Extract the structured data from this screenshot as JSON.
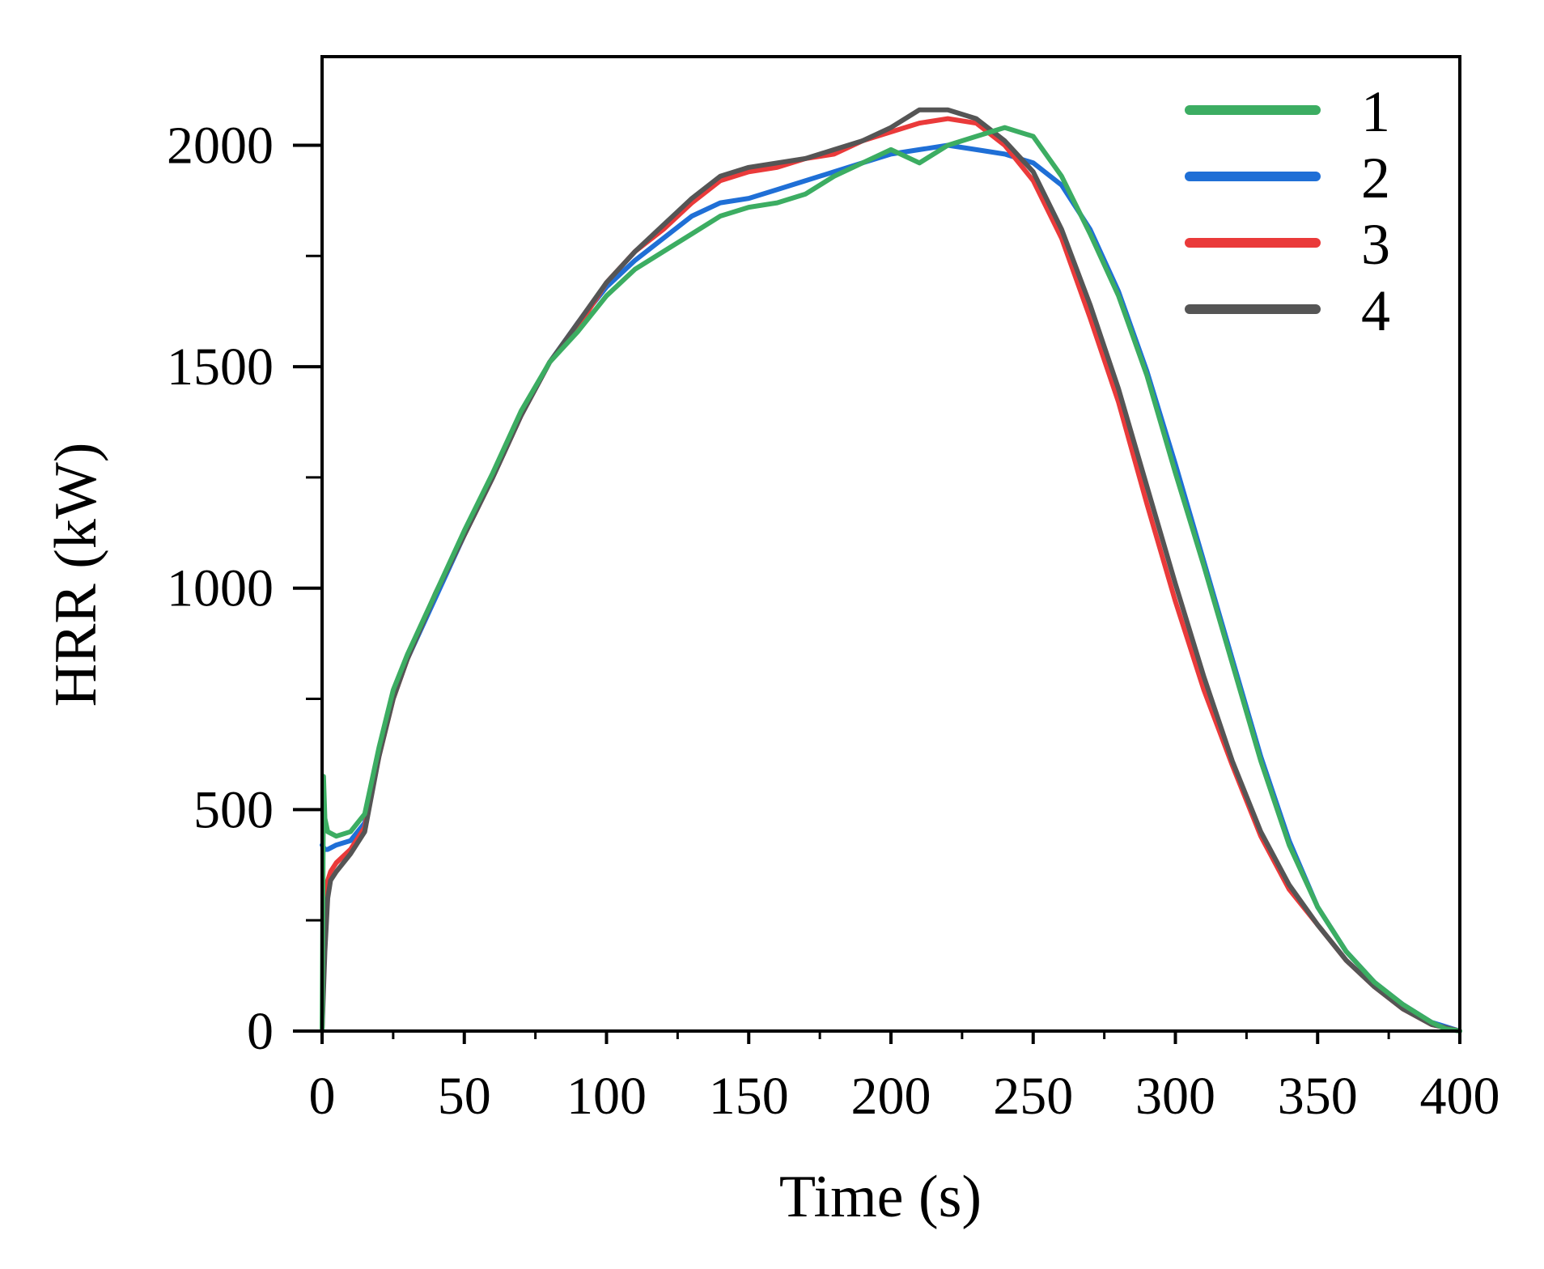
{
  "chart_data": {
    "type": "line",
    "title": "",
    "xlabel": "Time (s)",
    "ylabel": "HRR (kW)",
    "xlim": [
      0,
      400
    ],
    "ylim": [
      0,
      2200
    ],
    "x_ticks": [
      0,
      50,
      100,
      150,
      200,
      250,
      300,
      350,
      400
    ],
    "x_tick_labels": [
      "0",
      "50",
      "100",
      "150",
      "200",
      "250",
      "300",
      "350",
      "400"
    ],
    "y_ticks": [
      0,
      500,
      1000,
      1500,
      2000
    ],
    "y_tick_labels": [
      "0",
      "500",
      "1000",
      "1500",
      "2000"
    ],
    "grid": false,
    "legend_position": "top-right",
    "series": [
      {
        "name": "1",
        "color": "#3cad62",
        "x": [
          0,
          0.5,
          1,
          2,
          5,
          10,
          15,
          20,
          25,
          30,
          40,
          50,
          60,
          70,
          80,
          90,
          100,
          110,
          120,
          130,
          140,
          150,
          160,
          170,
          180,
          190,
          200,
          210,
          220,
          230,
          240,
          250,
          260,
          270,
          280,
          290,
          300,
          310,
          320,
          330,
          340,
          350,
          360,
          370,
          380,
          390,
          395,
          400
        ],
        "y": [
          0,
          575,
          480,
          450,
          440,
          450,
          490,
          640,
          770,
          850,
          990,
          1130,
          1260,
          1400,
          1510,
          1580,
          1660,
          1720,
          1760,
          1800,
          1840,
          1860,
          1870,
          1890,
          1930,
          1960,
          1990,
          1960,
          2000,
          2020,
          2040,
          2020,
          1930,
          1800,
          1660,
          1480,
          1260,
          1050,
          830,
          610,
          420,
          280,
          180,
          110,
          60,
          20,
          5,
          0
        ]
      },
      {
        "name": "2",
        "color": "#1f6fd6",
        "x": [
          0,
          1,
          2,
          5,
          10,
          15,
          20,
          25,
          30,
          40,
          50,
          60,
          70,
          80,
          90,
          100,
          110,
          120,
          130,
          140,
          150,
          160,
          170,
          180,
          190,
          200,
          210,
          220,
          230,
          240,
          250,
          260,
          270,
          280,
          290,
          300,
          310,
          320,
          330,
          340,
          350,
          360,
          370,
          380,
          390,
          400
        ],
        "y": [
          420,
          410,
          410,
          420,
          430,
          470,
          620,
          760,
          840,
          980,
          1120,
          1250,
          1390,
          1510,
          1600,
          1680,
          1740,
          1790,
          1840,
          1870,
          1880,
          1900,
          1920,
          1940,
          1960,
          1980,
          1990,
          2000,
          1990,
          1980,
          1960,
          1910,
          1810,
          1670,
          1490,
          1280,
          1060,
          840,
          620,
          430,
          280,
          180,
          110,
          60,
          20,
          0
        ]
      },
      {
        "name": "3",
        "color": "#ea3a3a",
        "x": [
          0,
          1,
          2,
          3,
          5,
          10,
          15,
          20,
          25,
          30,
          40,
          50,
          60,
          70,
          80,
          90,
          100,
          110,
          120,
          130,
          140,
          150,
          160,
          170,
          180,
          190,
          200,
          210,
          220,
          230,
          240,
          250,
          260,
          270,
          280,
          290,
          300,
          310,
          320,
          330,
          340,
          350,
          360,
          370,
          380,
          390,
          400
        ],
        "y": [
          0,
          250,
          340,
          360,
          380,
          410,
          460,
          620,
          750,
          840,
          990,
          1120,
          1250,
          1390,
          1510,
          1590,
          1690,
          1760,
          1810,
          1870,
          1920,
          1940,
          1950,
          1970,
          1980,
          2010,
          2030,
          2050,
          2060,
          2050,
          2000,
          1920,
          1790,
          1610,
          1420,
          1190,
          970,
          770,
          600,
          440,
          320,
          240,
          160,
          100,
          50,
          15,
          0
        ]
      },
      {
        "name": "4",
        "color": "#555555",
        "x": [
          0,
          1,
          2,
          3,
          5,
          10,
          15,
          20,
          25,
          30,
          40,
          50,
          60,
          70,
          80,
          90,
          100,
          110,
          120,
          130,
          140,
          150,
          160,
          170,
          180,
          190,
          200,
          210,
          220,
          230,
          240,
          250,
          260,
          270,
          280,
          290,
          300,
          310,
          320,
          330,
          340,
          350,
          360,
          370,
          380,
          390,
          400
        ],
        "y": [
          0,
          180,
          300,
          340,
          360,
          400,
          450,
          620,
          750,
          840,
          990,
          1120,
          1250,
          1390,
          1510,
          1600,
          1690,
          1760,
          1820,
          1880,
          1930,
          1950,
          1960,
          1970,
          1990,
          2010,
          2040,
          2080,
          2080,
          2060,
          2010,
          1940,
          1810,
          1640,
          1450,
          1230,
          1010,
          800,
          610,
          450,
          330,
          240,
          160,
          100,
          50,
          15,
          0
        ]
      }
    ]
  }
}
